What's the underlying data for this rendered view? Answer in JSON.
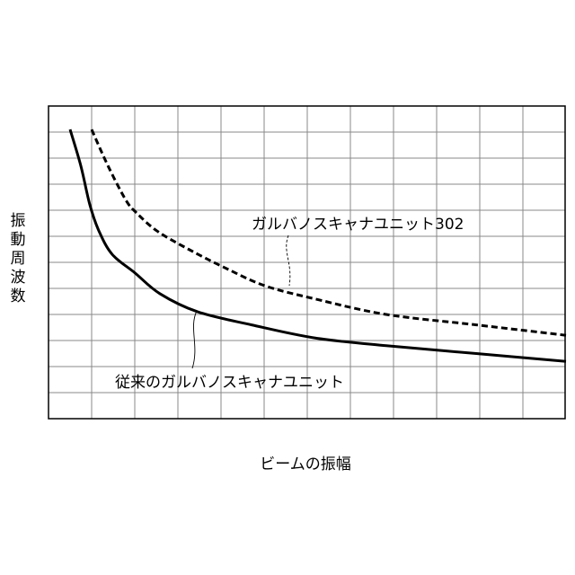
{
  "chart_data": {
    "type": "line",
    "title": "",
    "xlabel": "ビームの振幅",
    "ylabel": "振動周波数",
    "xlim": [
      0,
      12
    ],
    "ylim": [
      0,
      12
    ],
    "grid": true,
    "tick_labels": false,
    "series": [
      {
        "name": "ガルバノスキャナユニット302",
        "style": "dashed",
        "color": "#000000",
        "x": [
          1.0,
          1.38,
          1.79,
          2.04,
          2.52,
          3.25,
          4.08,
          5.02,
          6.17,
          7.83,
          9.92,
          12.0
        ],
        "y": [
          11.1,
          9.7,
          8.4,
          7.9,
          7.2,
          6.5,
          5.8,
          5.1,
          4.6,
          4.0,
          3.6,
          3.2
        ]
      },
      {
        "name": "従来のガルバノスキャナユニット",
        "style": "solid",
        "color": "#000000",
        "x": [
          0.5,
          0.75,
          0.96,
          1.17,
          1.48,
          2.0,
          2.58,
          3.46,
          4.71,
          6.17,
          7.83,
          9.92,
          12.0
        ],
        "y": [
          11.1,
          9.7,
          8.2,
          7.2,
          6.3,
          5.6,
          4.8,
          4.1,
          3.6,
          3.1,
          2.8,
          2.5,
          2.2
        ]
      }
    ]
  }
}
